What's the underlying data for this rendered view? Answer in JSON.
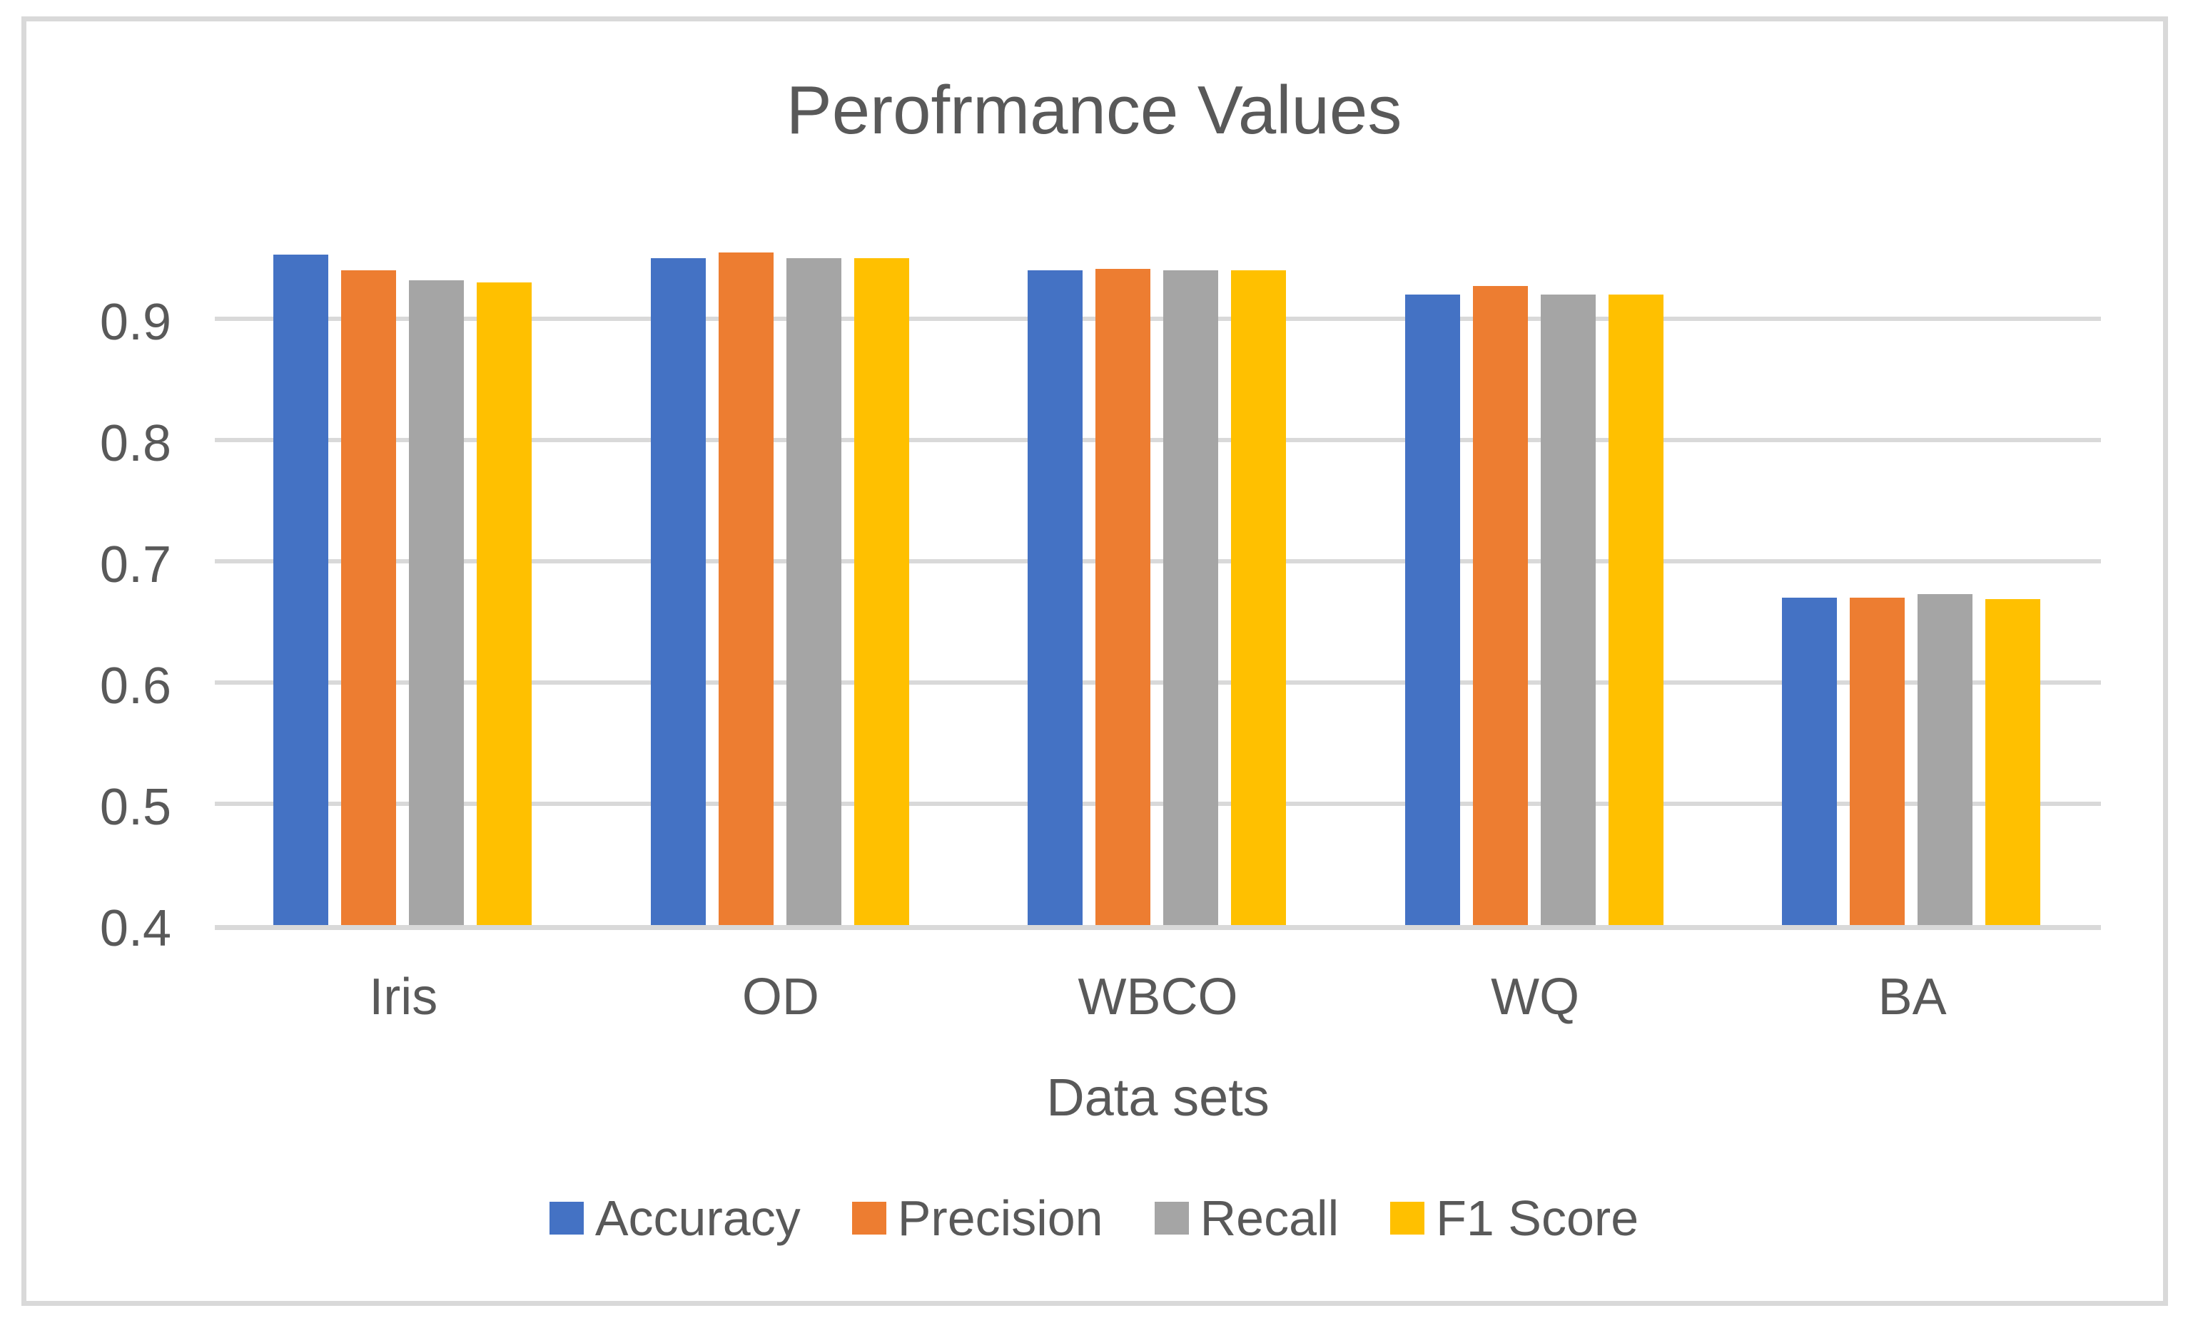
{
  "chart_data": {
    "type": "bar",
    "title": "Perofrmance Values",
    "xlabel": "Data sets",
    "ylabel": "",
    "categories": [
      "Iris",
      "OD",
      "WBCO",
      "WQ",
      "BA"
    ],
    "series": [
      {
        "name": "Accuracy",
        "color": "#4472C4",
        "values": [
          0.953,
          0.95,
          0.94,
          0.92,
          0.67
        ]
      },
      {
        "name": "Precision",
        "color": "#ED7D31",
        "values": [
          0.94,
          0.955,
          0.941,
          0.927,
          0.67
        ]
      },
      {
        "name": "Recall",
        "color": "#A5A5A5",
        "values": [
          0.932,
          0.95,
          0.94,
          0.92,
          0.673
        ]
      },
      {
        "name": "F1 Score",
        "color": "#FFC000",
        "values": [
          0.93,
          0.95,
          0.94,
          0.92,
          0.669
        ]
      }
    ],
    "y_axis": {
      "min": 0.4,
      "max": 0.96,
      "grid": true,
      "ticks": [
        {
          "label": "0.9",
          "value": 0.9
        },
        {
          "label": "0.8",
          "value": 0.8
        },
        {
          "label": "0.7",
          "value": 0.7
        },
        {
          "label": "0.6",
          "value": 0.6
        },
        {
          "label": "0.5",
          "value": 0.5
        },
        {
          "label": "0.4",
          "value": 0.4
        }
      ]
    },
    "legend_position": "bottom"
  },
  "style": {
    "text_color": "#595959",
    "grid_color": "#D9D9D9",
    "border_color": "#D9D9D9",
    "background": "#FFFFFF"
  }
}
